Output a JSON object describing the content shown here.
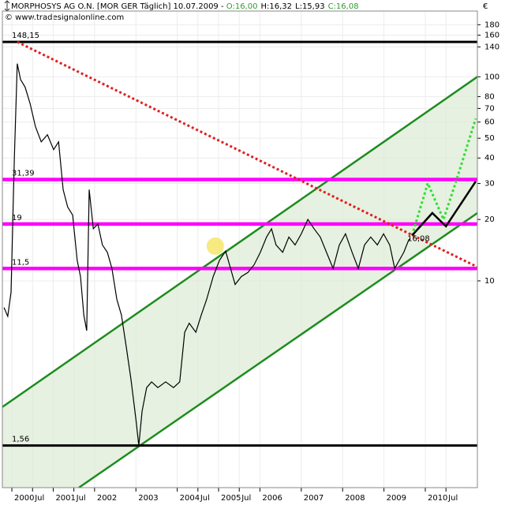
{
  "header": {
    "title": "MORPHOSYS AG O.N. [MOR GER  Täglich] 10.07.2009 - ",
    "ohlc": [
      {
        "text": "O:16,00",
        "color": "#2e9a2e"
      },
      {
        "text": "H:16,32",
        "color": "#000000"
      },
      {
        "text": "L:15,93",
        "color": "#000000"
      },
      {
        "text": "C:16,08",
        "color": "#2e9a2e"
      }
    ],
    "source": "© www.tradesignalonline.com",
    "currency": "€"
  },
  "chart_data": {
    "type": "line",
    "log_y": true,
    "grid": true,
    "color": "#000000",
    "xlim": [
      1999.77,
      2011.26
    ],
    "ylim": [
      0.97,
      210
    ],
    "xticks": [
      2000,
      {
        "value": 2000.5,
        "label": "Jul"
      },
      2001,
      {
        "value": 2001.5,
        "label": "Jul"
      },
      2002,
      2003,
      2004,
      {
        "value": 2004.5,
        "label": "Jul"
      },
      2005,
      {
        "value": 2005.5,
        "label": "Jul"
      },
      2006,
      2007,
      2008,
      2009,
      2010,
      {
        "value": 2010.5,
        "label": "Jul"
      }
    ],
    "yticks": [
      180,
      160,
      140,
      100,
      80,
      70,
      60,
      50,
      40,
      30,
      20,
      10
    ],
    "x": [
      1999.81,
      1999.9,
      1999.98,
      2000.06,
      2000.13,
      2000.21,
      2000.32,
      2000.44,
      2000.57,
      2000.71,
      2000.86,
      2001.01,
      2001.13,
      2001.24,
      2001.35,
      2001.47,
      2001.58,
      2001.66,
      2001.74,
      2001.81,
      2001.87,
      2001.97,
      2002.08,
      2002.19,
      2002.31,
      2002.42,
      2002.54,
      2002.65,
      2002.77,
      2002.88,
      2003.0,
      2003.07,
      2003.15,
      2003.26,
      2003.38,
      2003.53,
      2003.72,
      2003.91,
      2004.06,
      2004.18,
      2004.29,
      2004.45,
      2004.58,
      2004.71,
      2004.87,
      2005.02,
      2005.17,
      2005.29,
      2005.4,
      2005.55,
      2005.71,
      2005.86,
      2006.01,
      2006.16,
      2006.28,
      2006.39,
      2006.55,
      2006.7,
      2006.85,
      2007.0,
      2007.16,
      2007.31,
      2007.46,
      2007.61,
      2007.77,
      2007.92,
      2008.07,
      2008.23,
      2008.38,
      2008.53,
      2008.68,
      2008.84,
      2008.99,
      2009.14,
      2009.26,
      2009.37,
      2009.48,
      2009.6,
      2009.64
    ],
    "values": [
      7.4,
      6.7,
      8.8,
      40,
      116,
      97,
      89,
      74,
      57,
      48,
      52,
      44,
      48,
      28,
      23,
      21,
      12.6,
      10.5,
      6.8,
      5.7,
      28,
      18,
      19,
      15,
      13.8,
      11.5,
      8.1,
      6.8,
      4.7,
      3.3,
      2.1,
      1.56,
      2.3,
      3.0,
      3.2,
      3.0,
      3.2,
      3.0,
      3.2,
      5.6,
      6.2,
      5.6,
      6.8,
      8.1,
      10.5,
      12.6,
      14,
      11.5,
      9.6,
      10.5,
      11,
      12,
      13.8,
      16.4,
      18,
      15,
      13.8,
      16.4,
      15,
      17,
      20,
      18,
      16.4,
      13.8,
      11.5,
      15,
      17,
      13.8,
      11.5,
      15,
      16.4,
      15,
      17,
      15,
      11.5,
      12.6,
      13.8,
      15.9,
      16.08
    ],
    "levels": [
      {
        "value": 148.15,
        "label": "148,15",
        "color": "#000000"
      },
      {
        "value": 31.39,
        "label": "31,39",
        "color": "#ff00ff"
      },
      {
        "value": 19,
        "label": "19",
        "color": "#ff00ff"
      },
      {
        "value": 11.5,
        "label": "11,5",
        "color": "#ff00ff"
      },
      {
        "value": 1.56,
        "label": "1,56",
        "color": "#000000"
      }
    ],
    "channel": {
      "color": "#1e8c1e",
      "fill": "#dcebd4",
      "upper": {
        "x": [
          1999.77,
          2011.26
        ],
        "values": [
          2.41,
          100
        ]
      },
      "lower": {
        "x": [
          2001.62,
          2011.26
        ],
        "values": [
          0.97,
          21.5
        ]
      }
    },
    "lines": [
      {
        "x": [
          2000.13,
          2011.26
        ],
        "values": [
          148.15,
          11.7
        ],
        "color": "#e02020",
        "style": "dotted"
      },
      {
        "x": [
          2009.68,
          2010.06,
          2010.44,
          2010.73,
          2011.22
        ],
        "values": [
          16.7,
          30.1,
          20.0,
          30.1,
          62.4
        ],
        "color": "#33dd33",
        "style": "dotted"
      },
      {
        "x": [
          2009.68,
          2010.17,
          2010.5,
          2011.22
        ],
        "values": [
          16.7,
          21.5,
          18.5,
          30.7
        ],
        "color": "#000000",
        "style": "solid"
      }
    ],
    "highlight": {
      "x": 2004.92,
      "value": 14.8,
      "color": "#f5e66a"
    },
    "last_label": {
      "x": 2009.64,
      "value": 16.08,
      "label": "16,08",
      "color": "#2ec82e"
    }
  }
}
